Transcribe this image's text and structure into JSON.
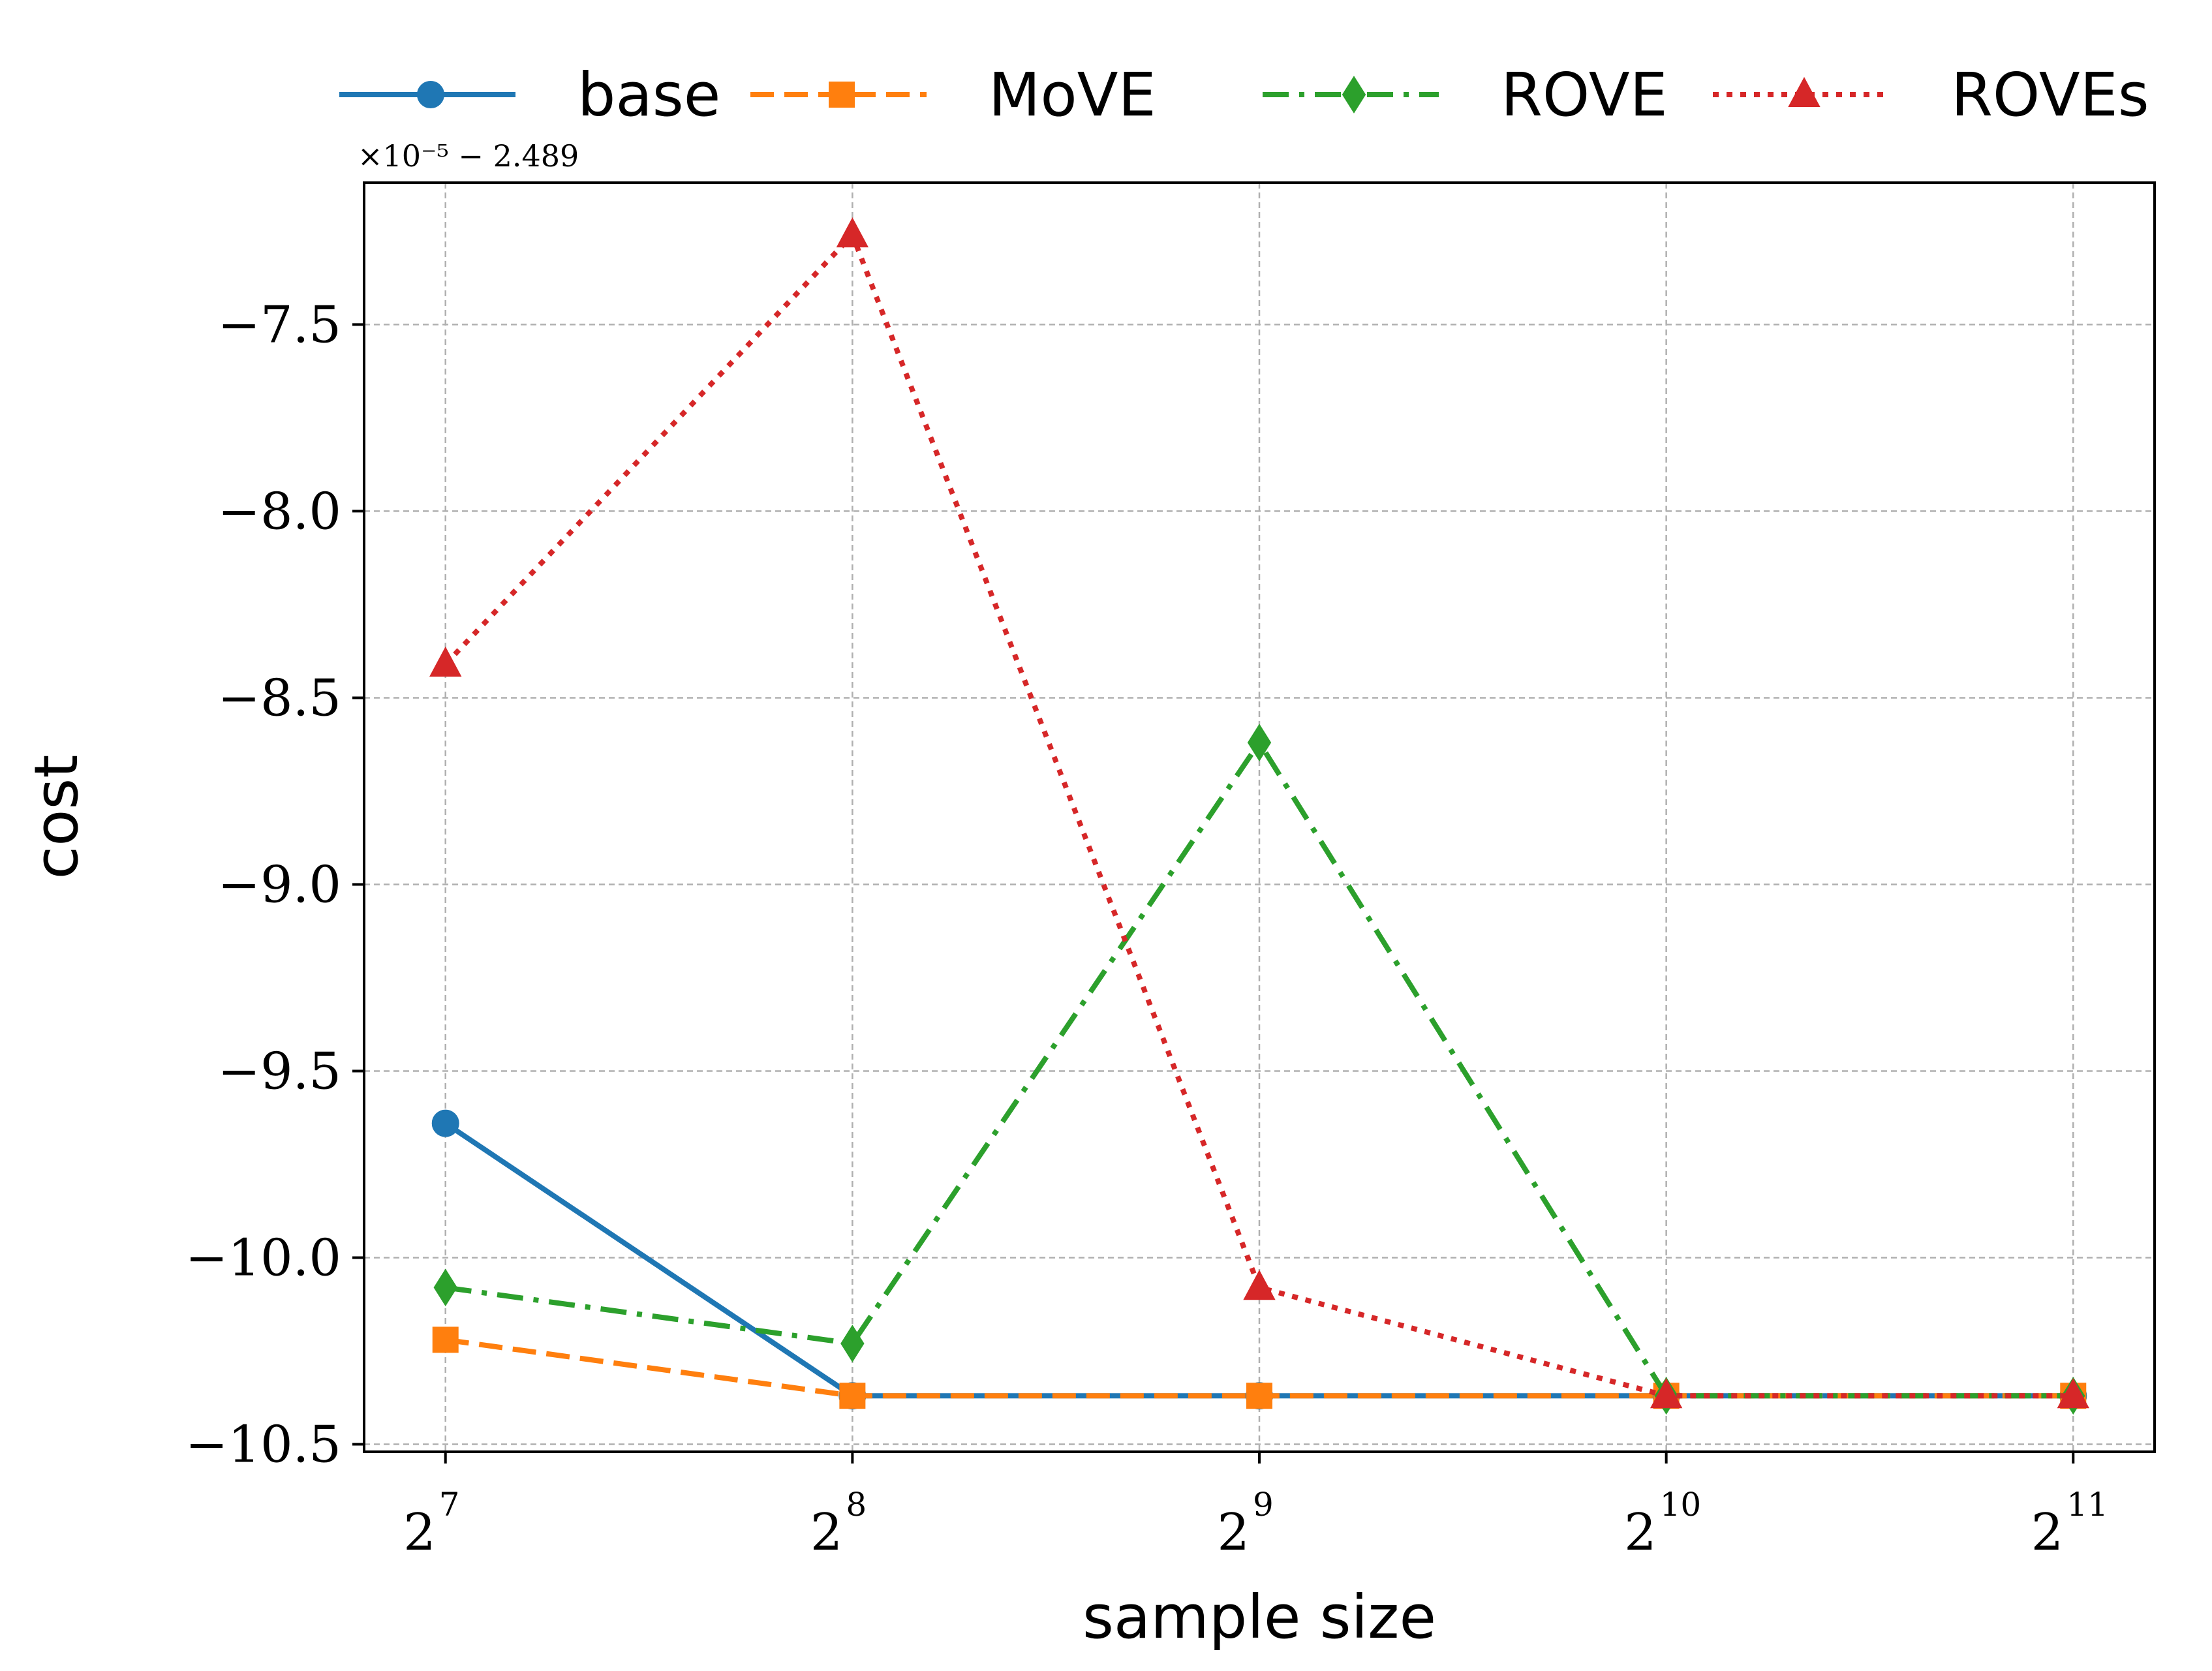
{
  "chart_data": {
    "type": "line",
    "xlabel": "sample size",
    "ylabel": "cost",
    "x": [
      7,
      8,
      9,
      10,
      11
    ],
    "x_ticks": [
      {
        "base": "2",
        "exp": "7"
      },
      {
        "base": "2",
        "exp": "8"
      },
      {
        "base": "2",
        "exp": "9"
      },
      {
        "base": "2",
        "exp": "10"
      },
      {
        "base": "2",
        "exp": "11"
      }
    ],
    "x_scale": "log2",
    "xlim": [
      6.8,
      11.2
    ],
    "ylim": [
      -10.52,
      -7.12
    ],
    "y_ticks": [
      -7.5,
      -8.0,
      -8.5,
      -9.0,
      -9.5,
      -10.0,
      -10.5
    ],
    "y_tick_labels": [
      "−7.5",
      "−8.0",
      "−8.5",
      "−9.0",
      "−9.5",
      "−10.0",
      "−10.5"
    ],
    "y_offset_label": "×10⁻⁵ − 2.489",
    "grid": true,
    "legend_position": "top",
    "series": [
      {
        "name": "base",
        "color": "#1f77b4",
        "marker": "circle",
        "linestyle": "solid",
        "values": [
          -9.64,
          -10.37,
          -10.37,
          -10.37,
          -10.37
        ]
      },
      {
        "name": "MoVE",
        "color": "#ff7f0e",
        "marker": "square",
        "linestyle": "dashed",
        "values": [
          -10.22,
          -10.37,
          -10.37,
          -10.37,
          -10.37
        ]
      },
      {
        "name": "ROVE",
        "color": "#2ca02c",
        "marker": "diamond",
        "linestyle": "dashdot",
        "values": [
          -10.08,
          -10.23,
          -8.62,
          -10.37,
          -10.37
        ]
      },
      {
        "name": "ROVEs",
        "color": "#d62728",
        "marker": "triangle",
        "linestyle": "dotted",
        "values": [
          -8.41,
          -7.26,
          -10.08,
          -10.37,
          -10.37
        ]
      }
    ]
  }
}
